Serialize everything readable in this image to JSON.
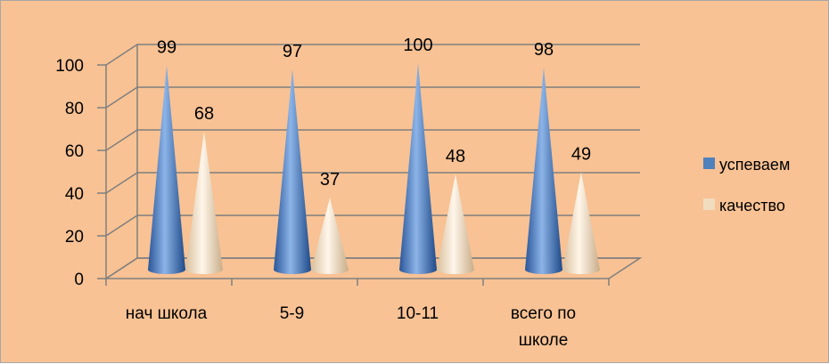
{
  "chart_data": {
    "type": "bar",
    "style": "3d-cone",
    "categories": [
      "нач школа",
      "5-9",
      "10-11",
      "всего по школе"
    ],
    "series": [
      {
        "name": "успеваем",
        "values": [
          99,
          97,
          100,
          98
        ],
        "color": "#4f81bd"
      },
      {
        "name": "качество",
        "values": [
          68,
          37,
          48,
          49
        ],
        "color": "#f2dcc0"
      }
    ],
    "ylim": [
      0,
      100
    ],
    "yticks": [
      0,
      20,
      40,
      60,
      80,
      100
    ],
    "grid": true,
    "legend": "right",
    "background": "#f8c294"
  }
}
